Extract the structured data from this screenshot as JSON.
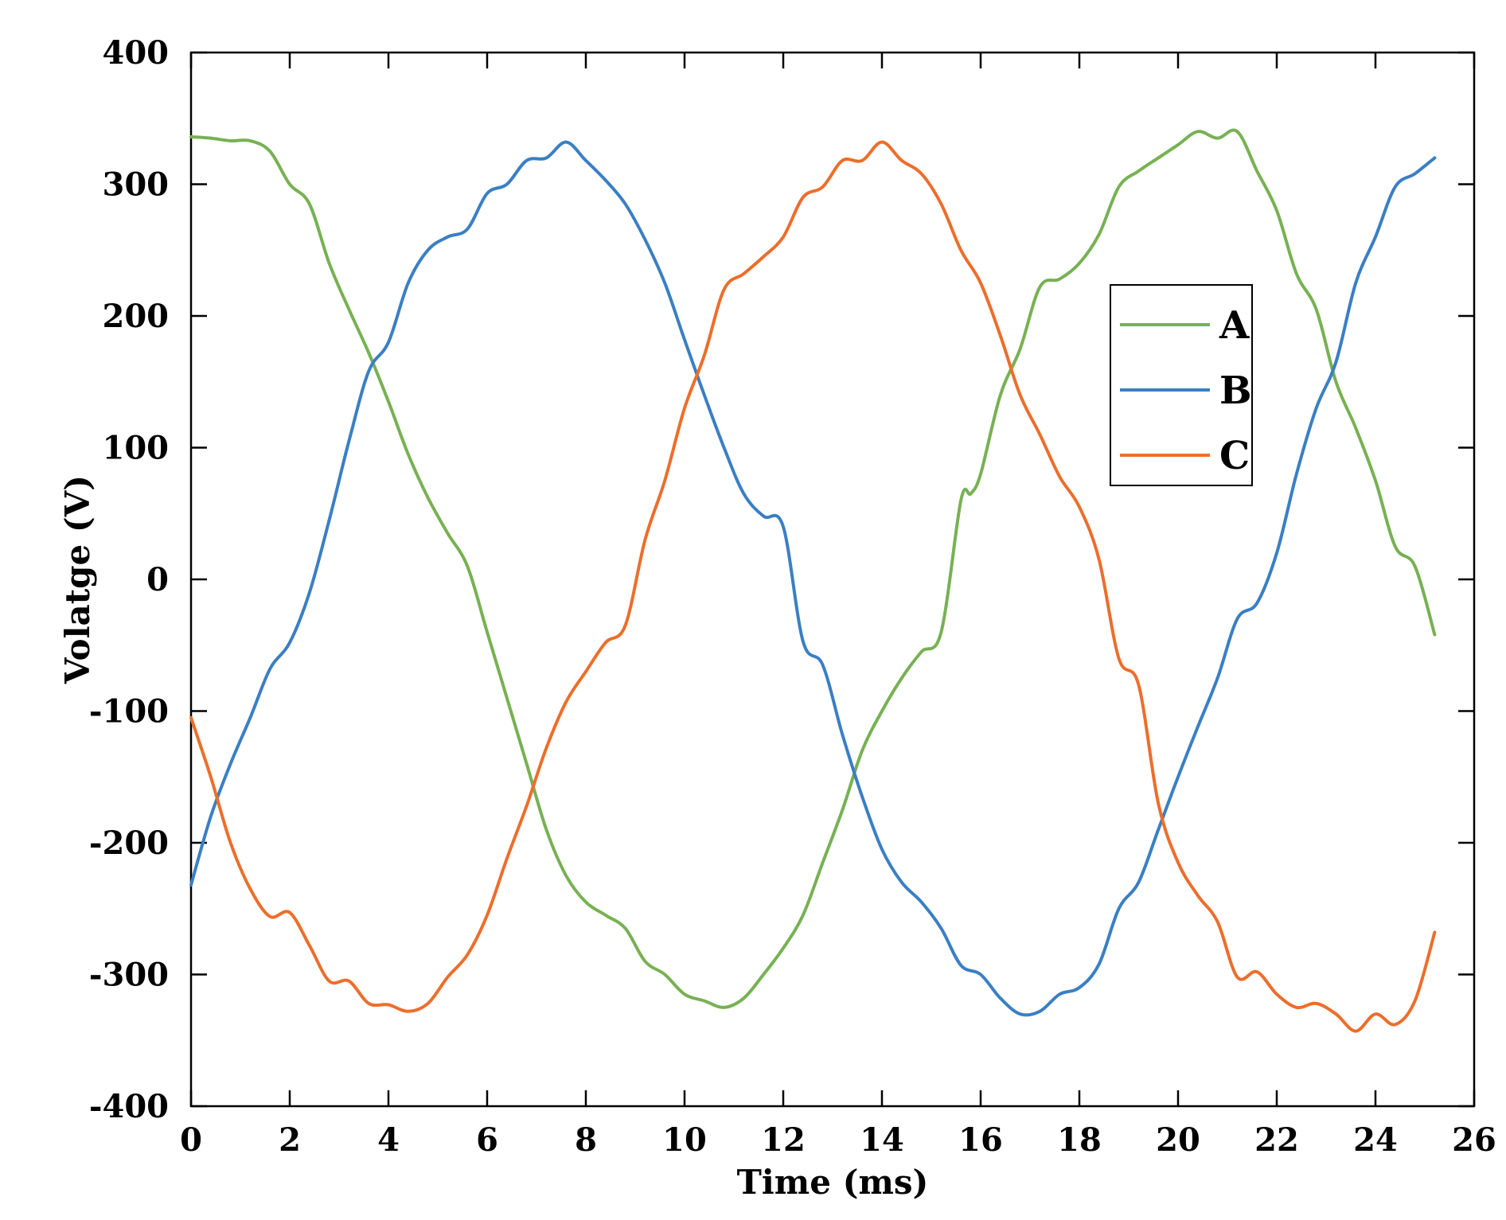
{
  "chart_data": {
    "type": "line",
    "title": "",
    "xlabel": "Time (ms)",
    "ylabel": "Volatge (V)",
    "xlim": [
      0,
      26
    ],
    "ylim": [
      -400,
      400
    ],
    "xticks": [
      0,
      2,
      4,
      6,
      8,
      10,
      12,
      14,
      16,
      18,
      20,
      22,
      24,
      26
    ],
    "yticks": [
      -400,
      -300,
      -200,
      -100,
      0,
      100,
      200,
      300,
      400
    ],
    "xtick_labels": [
      "0",
      "2",
      "4",
      "6",
      "8",
      "10",
      "12",
      "14",
      "16",
      "18",
      "20",
      "22",
      "24",
      "26"
    ],
    "ytick_labels": [
      "-400",
      "-300",
      "-200",
      "-100",
      "0",
      "100",
      "200",
      "300",
      "400"
    ],
    "grid": false,
    "legend_position": "upper-right",
    "series": [
      {
        "name": "A",
        "color": "#77b153",
        "x": [
          0,
          0.4,
          0.8,
          1.2,
          1.6,
          2.0,
          2.4,
          2.8,
          3.2,
          3.6,
          4.0,
          4.4,
          4.8,
          5.2,
          5.6,
          6.0,
          6.4,
          6.8,
          7.2,
          7.6,
          8.0,
          8.4,
          8.8,
          9.2,
          9.6,
          10.0,
          10.4,
          10.8,
          11.2,
          11.6,
          12.0,
          12.4,
          12.8,
          13.2,
          13.6,
          14.0,
          14.4,
          14.8,
          15.2,
          15.6,
          15.8,
          16.0,
          16.4,
          16.8,
          17.2,
          17.6,
          18.0,
          18.4,
          18.8,
          19.2,
          19.6,
          20.0,
          20.4,
          20.8,
          21.2,
          21.6,
          22.0,
          22.4,
          22.8,
          23.2,
          23.6,
          24.0,
          24.4,
          24.8,
          25.2
        ],
        "y": [
          336,
          335,
          333,
          333,
          325,
          300,
          285,
          240,
          205,
          172,
          135,
          95,
          62,
          35,
          10,
          -40,
          -90,
          -140,
          -190,
          -225,
          -245,
          -255,
          -265,
          -290,
          -300,
          -315,
          -320,
          -325,
          -318,
          -300,
          -280,
          -255,
          -215,
          -175,
          -130,
          -100,
          -75,
          -55,
          -40,
          60,
          65,
          80,
          140,
          175,
          222,
          228,
          240,
          262,
          298,
          310,
          320,
          330,
          340,
          335,
          340,
          310,
          280,
          232,
          205,
          150,
          115,
          75,
          25,
          10,
          -42
        ]
      },
      {
        "name": "B",
        "color": "#3a7fc4",
        "x": [
          0,
          0.4,
          0.8,
          1.2,
          1.6,
          2.0,
          2.4,
          2.8,
          3.2,
          3.6,
          4.0,
          4.4,
          4.8,
          5.2,
          5.6,
          6.0,
          6.4,
          6.8,
          7.2,
          7.6,
          8.0,
          8.4,
          8.8,
          9.2,
          9.6,
          10.0,
          10.4,
          10.8,
          11.2,
          11.6,
          12.0,
          12.4,
          12.8,
          13.2,
          13.6,
          14.0,
          14.4,
          14.8,
          15.2,
          15.6,
          16.0,
          16.4,
          16.8,
          17.2,
          17.6,
          18.0,
          18.4,
          18.8,
          19.2,
          19.6,
          20.0,
          20.4,
          20.8,
          21.2,
          21.6,
          22.0,
          22.4,
          22.8,
          23.2,
          23.6,
          24.0,
          24.4,
          24.8,
          25.2
        ],
        "y": [
          -232,
          -180,
          -140,
          -105,
          -68,
          -48,
          -10,
          45,
          105,
          158,
          180,
          225,
          250,
          260,
          266,
          293,
          300,
          318,
          320,
          332,
          318,
          303,
          285,
          258,
          225,
          182,
          140,
          100,
          65,
          48,
          40,
          -47,
          -65,
          -118,
          -165,
          -205,
          -230,
          -245,
          -265,
          -293,
          -300,
          -318,
          -330,
          -328,
          -315,
          -310,
          -292,
          -250,
          -230,
          -190,
          -150,
          -112,
          -75,
          -30,
          -18,
          20,
          80,
          130,
          165,
          225,
          260,
          298,
          308,
          320
        ]
      },
      {
        "name": "C",
        "color": "#ec6e2b",
        "x": [
          0,
          0.4,
          0.8,
          1.2,
          1.6,
          2.0,
          2.4,
          2.8,
          3.2,
          3.6,
          4.0,
          4.4,
          4.8,
          5.2,
          5.6,
          6.0,
          6.4,
          6.8,
          7.2,
          7.6,
          8.0,
          8.4,
          8.8,
          9.2,
          9.6,
          10.0,
          10.4,
          10.8,
          11.2,
          11.6,
          12.0,
          12.4,
          12.8,
          13.2,
          13.6,
          14.0,
          14.4,
          14.8,
          15.2,
          15.6,
          16.0,
          16.4,
          16.8,
          17.2,
          17.6,
          18.0,
          18.4,
          18.8,
          19.2,
          19.6,
          20.0,
          20.4,
          20.8,
          21.2,
          21.6,
          22.0,
          22.4,
          22.8,
          23.2,
          23.6,
          24.0,
          24.4,
          24.8,
          25.2
        ],
        "y": [
          -105,
          -150,
          -200,
          -235,
          -256,
          -253,
          -278,
          -305,
          -305,
          -322,
          -323,
          -328,
          -322,
          -302,
          -285,
          -255,
          -212,
          -172,
          -128,
          -93,
          -70,
          -48,
          -35,
          30,
          75,
          130,
          170,
          220,
          232,
          245,
          260,
          290,
          298,
          318,
          318,
          332,
          318,
          308,
          285,
          250,
          225,
          185,
          140,
          110,
          78,
          55,
          15,
          -60,
          -80,
          -170,
          -215,
          -240,
          -260,
          -302,
          -298,
          -315,
          -325,
          -322,
          -330,
          -343,
          -330,
          -338,
          -320,
          -268
        ]
      }
    ]
  }
}
